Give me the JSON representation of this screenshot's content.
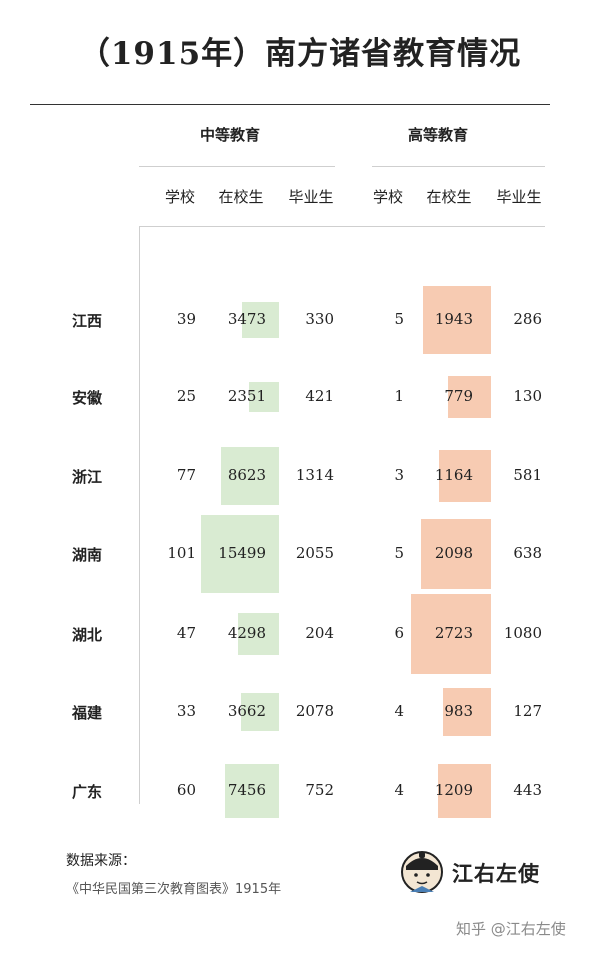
{
  "title": "（1915年）南方诸省教育情况",
  "groups": {
    "secondary": "中等教育",
    "higher": "高等教育"
  },
  "columns": {
    "secondary": [
      "学校",
      "在校生",
      "毕业生"
    ],
    "higher": [
      "学校",
      "在校生",
      "毕业生"
    ]
  },
  "rows": [
    {
      "province": "江西",
      "sec_schools": "39",
      "sec_students": "3473",
      "sec_grads": "330",
      "hi_schools": "5",
      "hi_students": "1943",
      "hi_grads": "286"
    },
    {
      "province": "安徽",
      "sec_schools": "25",
      "sec_students": "2351",
      "sec_grads": "421",
      "hi_schools": "1",
      "hi_students": "779",
      "hi_grads": "130"
    },
    {
      "province": "浙江",
      "sec_schools": "77",
      "sec_students": "8623",
      "sec_grads": "1314",
      "hi_schools": "3",
      "hi_students": "1164",
      "hi_grads": "581"
    },
    {
      "province": "湖南",
      "sec_schools": "101",
      "sec_students": "15499",
      "sec_grads": "2055",
      "hi_schools": "5",
      "hi_students": "2098",
      "hi_grads": "638"
    },
    {
      "province": "湖北",
      "sec_schools": "47",
      "sec_students": "4298",
      "sec_grads": "204",
      "hi_schools": "6",
      "hi_students": "2723",
      "hi_grads": "1080"
    },
    {
      "province": "福建",
      "sec_schools": "33",
      "sec_students": "3662",
      "sec_grads": "2078",
      "hi_schools": "4",
      "hi_students": "983",
      "hi_grads": "127"
    },
    {
      "province": "广东",
      "sec_schools": "60",
      "sec_students": "7456",
      "sec_grads": "752",
      "hi_schools": "4",
      "hi_students": "1209",
      "hi_grads": "443"
    }
  ],
  "colors": {
    "secondary_fill": "#d9ebd2",
    "higher_fill": "#f7cbb2"
  },
  "source": {
    "label": "数据来源：",
    "text": "《中华民国第三次教育图表》1915年"
  },
  "logo": {
    "name": "江右左使",
    "icon": "avatar-icon"
  },
  "watermark": "知乎 @江右左使"
}
